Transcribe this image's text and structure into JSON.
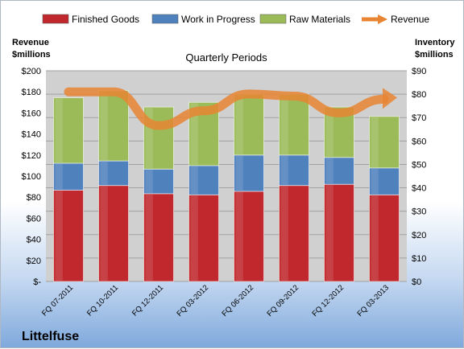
{
  "chart_data": {
    "type": "bar",
    "subtitle": "Quarterly Periods",
    "categories": [
      "FQ 07-2011",
      "FQ 10-2011",
      "FQ 12-2011",
      "FQ 03-2012",
      "FQ 06-2012",
      "FQ 09-2012",
      "FQ 12-2012",
      "FQ 03-2013"
    ],
    "stacked": true,
    "series": [
      {
        "name": "Finished Goods",
        "type": "bar",
        "axis": "right",
        "color": "#c0282d",
        "values": [
          39,
          41,
          37.5,
          37,
          38.5,
          41,
          41.5,
          37
        ]
      },
      {
        "name": "Work in Progress",
        "type": "bar",
        "axis": "right",
        "color": "#4f81bd",
        "values": [
          11.5,
          10.5,
          10.5,
          12.5,
          15.5,
          13,
          11.5,
          11.5
        ]
      },
      {
        "name": "Raw Materials",
        "type": "bar",
        "axis": "right",
        "color": "#9bbb59",
        "values": [
          28,
          30,
          26.5,
          27,
          26,
          26,
          21.5,
          22
        ]
      },
      {
        "name": "Revenue",
        "type": "line",
        "axis": "left",
        "color": "#e88532",
        "values": [
          180,
          180,
          148,
          162,
          178,
          176,
          160,
          173
        ]
      }
    ],
    "left_axis": {
      "title_line1": "Revenue",
      "title_line2": "$millions",
      "ylim": [
        0,
        200
      ],
      "ticks": [
        0,
        20,
        40,
        60,
        80,
        100,
        120,
        140,
        160,
        180,
        200
      ],
      "tick_labels": [
        "$-",
        "$20",
        "$40",
        "$60",
        "$80",
        "$100",
        "$120",
        "$140",
        "$160",
        "$180",
        "$200"
      ]
    },
    "right_axis": {
      "title_line1": "Inventory",
      "title_line2": "$millions",
      "ylim": [
        0,
        90
      ],
      "ticks": [
        0,
        10,
        20,
        30,
        40,
        50,
        60,
        70,
        80,
        90
      ],
      "tick_labels": [
        "$0",
        "$10",
        "$20",
        "$30",
        "$40",
        "$50",
        "$60",
        "$70",
        "$80",
        "$90"
      ]
    },
    "legend_position": "top",
    "grid": true
  },
  "company": "Littelfuse",
  "colors": {
    "plot_background": "#d0d0d0",
    "gridline": "#a0a0a0"
  }
}
